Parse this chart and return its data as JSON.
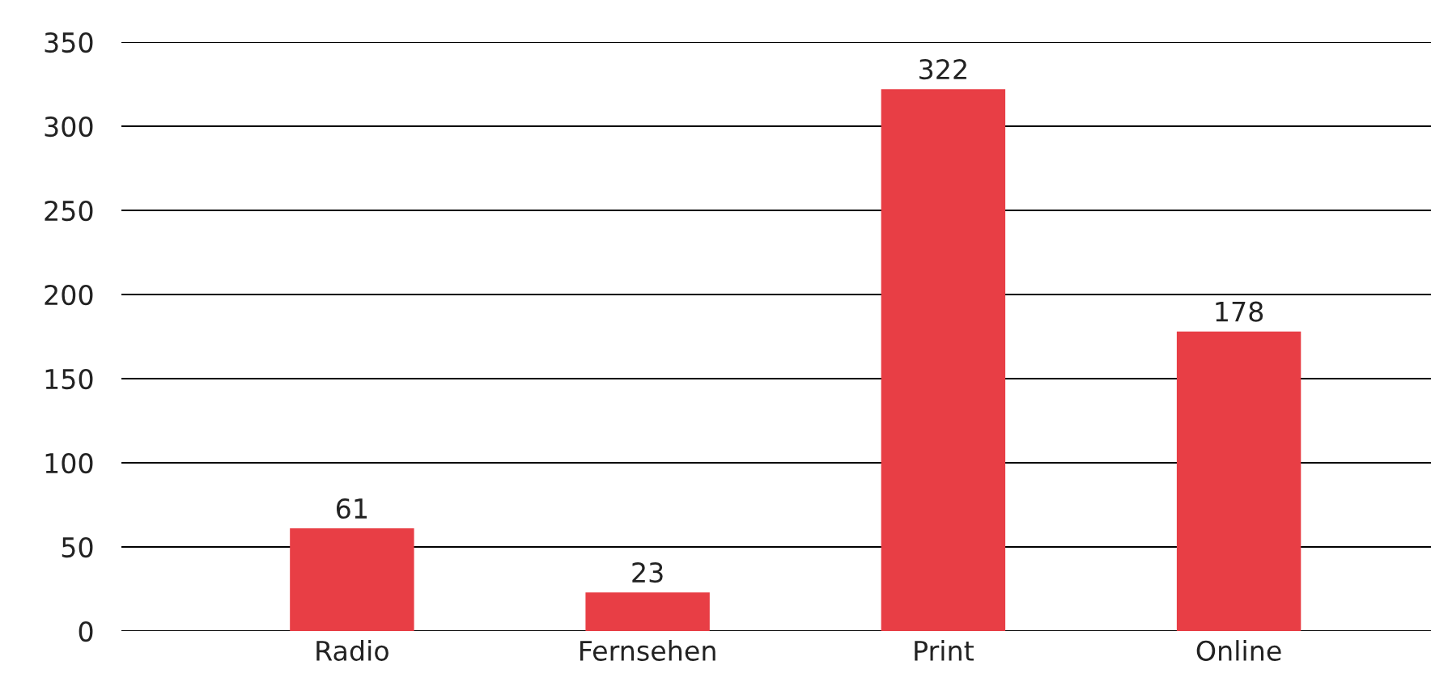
{
  "chart_data": {
    "type": "bar",
    "categories": [
      "Radio",
      "Fernsehen",
      "Print",
      "Online"
    ],
    "values": [
      61,
      23,
      322,
      178
    ],
    "color": "#e83e45",
    "ylim": [
      0,
      350
    ],
    "yticks": [
      0,
      50,
      100,
      150,
      200,
      250,
      300,
      350
    ],
    "grid": "y",
    "data_labels": true
  }
}
